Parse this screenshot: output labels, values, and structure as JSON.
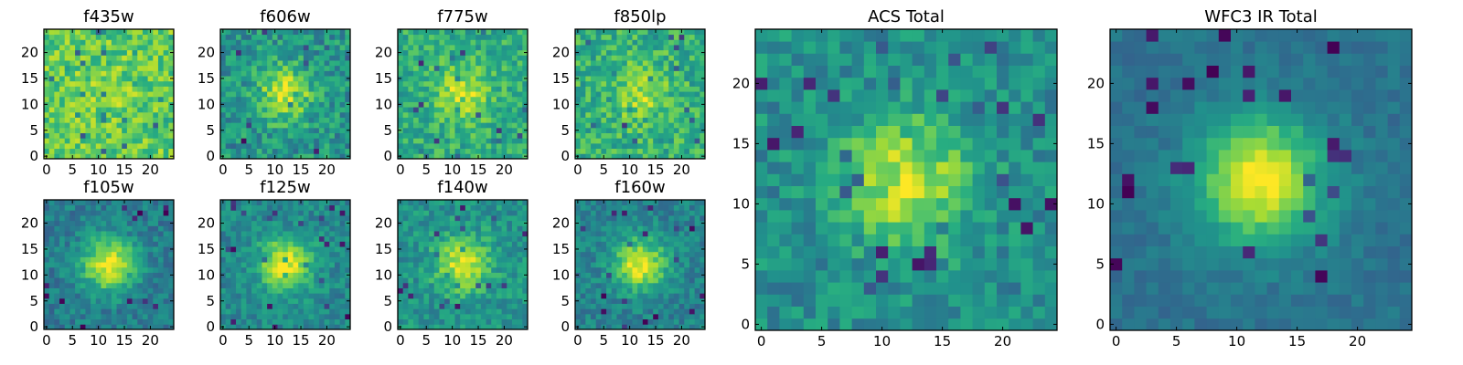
{
  "chart_data": [
    {
      "type": "heatmap",
      "title": "f435w",
      "colormap": "viridis",
      "grid": false,
      "shape": [
        25,
        25
      ],
      "xlim": [
        -0.5,
        24.5
      ],
      "ylim": [
        -0.5,
        24.5
      ],
      "xticks": [
        0,
        5,
        10,
        15,
        20
      ],
      "yticks": [
        0,
        5,
        10,
        15,
        20
      ],
      "tick_labels_x": [
        "0",
        "5",
        "10",
        "15",
        "20"
      ],
      "tick_labels_y": [
        "0",
        "5",
        "10",
        "15",
        "20"
      ],
      "peak": [
        12,
        12
      ],
      "blob_strength": 0.05,
      "noise": 0.16,
      "base": 0.76
    },
    {
      "type": "heatmap",
      "title": "f606w",
      "colormap": "viridis",
      "grid": false,
      "shape": [
        25,
        25
      ],
      "xlim": [
        -0.5,
        24.5
      ],
      "ylim": [
        -0.5,
        24.5
      ],
      "xticks": [
        0,
        5,
        10,
        15,
        20
      ],
      "yticks": [
        0,
        5,
        10,
        15,
        20
      ],
      "tick_labels_x": [
        "0",
        "5",
        "10",
        "15",
        "20"
      ],
      "tick_labels_y": [
        "0",
        "5",
        "10",
        "15",
        "20"
      ],
      "peak": [
        12,
        12
      ],
      "blob_strength": 0.42,
      "noise": 0.17,
      "base": 0.52
    },
    {
      "type": "heatmap",
      "title": "f775w",
      "colormap": "viridis",
      "grid": false,
      "shape": [
        25,
        25
      ],
      "xlim": [
        -0.5,
        24.5
      ],
      "ylim": [
        -0.5,
        24.5
      ],
      "xticks": [
        0,
        5,
        10,
        15,
        20
      ],
      "yticks": [
        0,
        5,
        10,
        15,
        20
      ],
      "tick_labels_x": [
        "0",
        "5",
        "10",
        "15",
        "20"
      ],
      "tick_labels_y": [
        "0",
        "5",
        "10",
        "15",
        "20"
      ],
      "peak": [
        12,
        12
      ],
      "blob_strength": 0.32,
      "noise": 0.15,
      "base": 0.62
    },
    {
      "type": "heatmap",
      "title": "f850lp",
      "colormap": "viridis",
      "grid": false,
      "shape": [
        25,
        25
      ],
      "xlim": [
        -0.5,
        24.5
      ],
      "ylim": [
        -0.5,
        24.5
      ],
      "xticks": [
        0,
        5,
        10,
        15,
        20
      ],
      "yticks": [
        0,
        5,
        10,
        15,
        20
      ],
      "tick_labels_x": [
        "0",
        "5",
        "10",
        "15",
        "20"
      ],
      "tick_labels_y": [
        "0",
        "5",
        "10",
        "15",
        "20"
      ],
      "peak": [
        12,
        12
      ],
      "blob_strength": 0.22,
      "noise": 0.17,
      "base": 0.64
    },
    {
      "type": "heatmap",
      "title": "f105w",
      "colormap": "viridis",
      "grid": false,
      "shape": [
        25,
        25
      ],
      "xlim": [
        -0.5,
        24.5
      ],
      "ylim": [
        -0.5,
        24.5
      ],
      "xticks": [
        0,
        5,
        10,
        15,
        20
      ],
      "yticks": [
        0,
        5,
        10,
        15,
        20
      ],
      "tick_labels_x": [
        "0",
        "5",
        "10",
        "15",
        "20"
      ],
      "tick_labels_y": [
        "0",
        "5",
        "10",
        "15",
        "20"
      ],
      "peak": [
        12,
        12
      ],
      "blob_strength": 0.55,
      "noise": 0.12,
      "base": 0.42
    },
    {
      "type": "heatmap",
      "title": "f125w",
      "colormap": "viridis",
      "grid": false,
      "shape": [
        25,
        25
      ],
      "xlim": [
        -0.5,
        24.5
      ],
      "ylim": [
        -0.5,
        24.5
      ],
      "xticks": [
        0,
        5,
        10,
        15,
        20
      ],
      "yticks": [
        0,
        5,
        10,
        15,
        20
      ],
      "tick_labels_x": [
        "0",
        "5",
        "10",
        "15",
        "20"
      ],
      "tick_labels_y": [
        "0",
        "5",
        "10",
        "15",
        "20"
      ],
      "peak": [
        12,
        12
      ],
      "blob_strength": 0.5,
      "noise": 0.12,
      "base": 0.47
    },
    {
      "type": "heatmap",
      "title": "f140w",
      "colormap": "viridis",
      "grid": false,
      "shape": [
        25,
        25
      ],
      "xlim": [
        -0.5,
        24.5
      ],
      "ylim": [
        -0.5,
        24.5
      ],
      "xticks": [
        0,
        5,
        10,
        15,
        20
      ],
      "yticks": [
        0,
        5,
        10,
        15,
        20
      ],
      "tick_labels_x": [
        "0",
        "5",
        "10",
        "15",
        "20"
      ],
      "tick_labels_y": [
        "0",
        "5",
        "10",
        "15",
        "20"
      ],
      "peak": [
        12,
        12
      ],
      "blob_strength": 0.42,
      "noise": 0.13,
      "base": 0.52
    },
    {
      "type": "heatmap",
      "title": "f160w",
      "colormap": "viridis",
      "grid": false,
      "shape": [
        25,
        25
      ],
      "xlim": [
        -0.5,
        24.5
      ],
      "ylim": [
        -0.5,
        24.5
      ],
      "xticks": [
        0,
        5,
        10,
        15,
        20
      ],
      "yticks": [
        0,
        5,
        10,
        15,
        20
      ],
      "tick_labels_x": [
        "0",
        "5",
        "10",
        "15",
        "20"
      ],
      "tick_labels_y": [
        "0",
        "5",
        "10",
        "15",
        "20"
      ],
      "peak": [
        12,
        12
      ],
      "blob_strength": 0.52,
      "noise": 0.12,
      "base": 0.44
    },
    {
      "type": "heatmap",
      "title": "ACS Total",
      "colormap": "viridis",
      "grid": false,
      "shape": [
        25,
        25
      ],
      "xlim": [
        -0.5,
        24.5
      ],
      "ylim": [
        -0.5,
        24.5
      ],
      "xticks": [
        0,
        5,
        10,
        15,
        20
      ],
      "yticks": [
        0,
        5,
        10,
        15,
        20
      ],
      "tick_labels_x": [
        "0",
        "5",
        "10",
        "15",
        "20"
      ],
      "tick_labels_y": [
        "0",
        "5",
        "10",
        "15",
        "20"
      ],
      "peak": [
        12,
        12
      ],
      "blob_strength": 0.42,
      "noise": 0.14,
      "base": 0.5
    },
    {
      "type": "heatmap",
      "title": "WFC3 IR Total",
      "colormap": "viridis",
      "grid": false,
      "shape": [
        25,
        25
      ],
      "xlim": [
        -0.5,
        24.5
      ],
      "ylim": [
        -0.5,
        24.5
      ],
      "xticks": [
        0,
        5,
        10,
        15,
        20
      ],
      "yticks": [
        0,
        5,
        10,
        15,
        20
      ],
      "tick_labels_x": [
        "0",
        "5",
        "10",
        "15",
        "20"
      ],
      "tick_labels_y": [
        "0",
        "5",
        "10",
        "15",
        "20"
      ],
      "peak": [
        12,
        12
      ],
      "blob_strength": 0.62,
      "noise": 0.06,
      "base": 0.38
    }
  ]
}
